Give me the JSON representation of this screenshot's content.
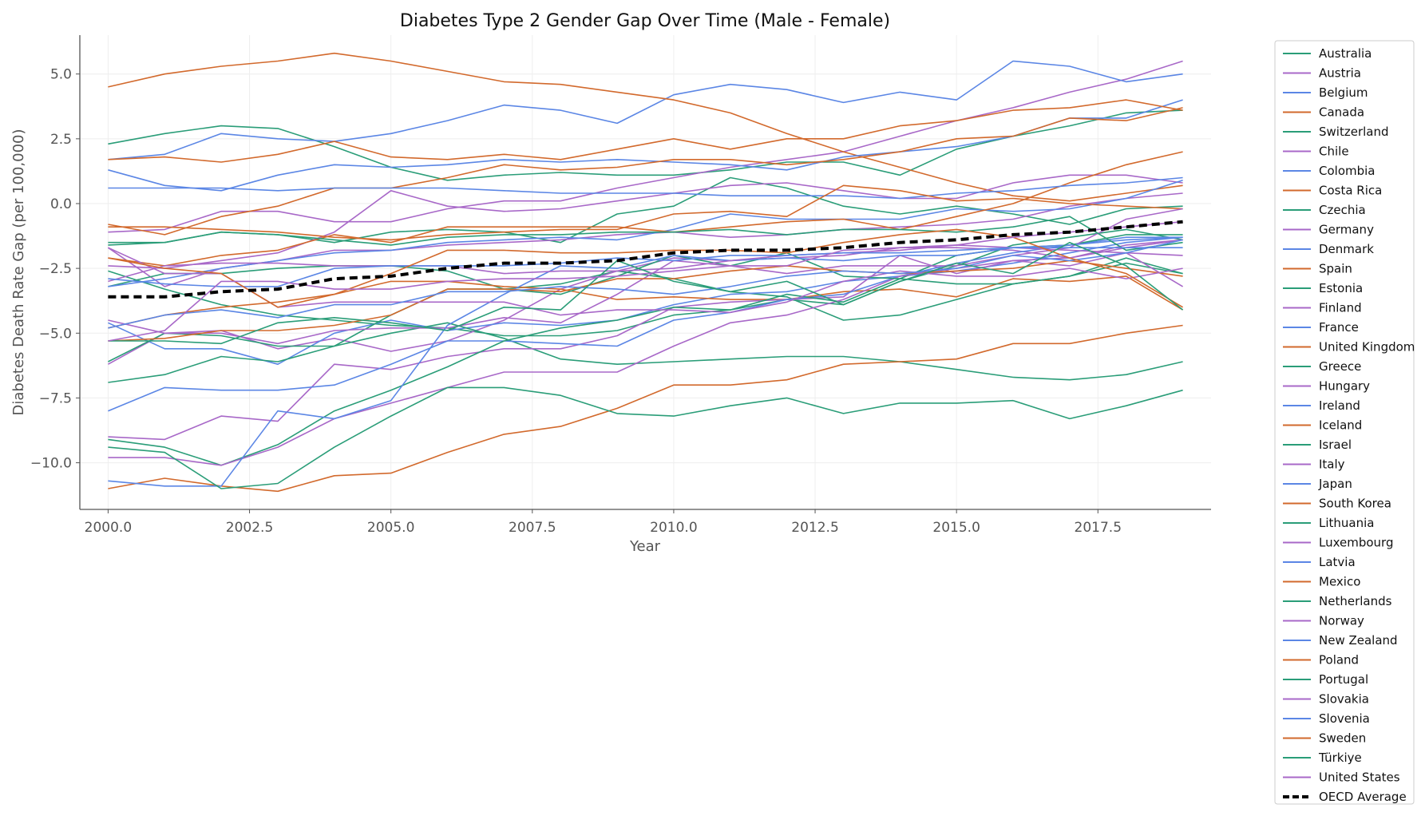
{
  "chart_data": {
    "type": "line",
    "title": "Diabetes Type 2 Gender Gap Over Time (Male - Female)",
    "xlabel": "Year",
    "ylabel": "Diabetes Death Rate Gap (per 100,000)",
    "xlim": [
      1999.5,
      2019.5
    ],
    "ylim": [
      -11.8,
      6.5
    ],
    "xticks": [
      2000.0,
      2002.5,
      2005.0,
      2007.5,
      2010.0,
      2012.5,
      2015.0,
      2017.5
    ],
    "xtick_labels": [
      "2000.0",
      "2002.5",
      "2005.0",
      "2007.5",
      "2010.0",
      "2012.5",
      "2015.0",
      "2017.5"
    ],
    "yticks": [
      5.0,
      2.5,
      0.0,
      -2.5,
      -5.0,
      -7.5,
      -10.0
    ],
    "ytick_labels": [
      "5.0",
      "2.5",
      "0.0",
      "−2.5",
      "−5.0",
      "−7.5",
      "−10.0"
    ],
    "grid": true,
    "legend_position": "outside-right",
    "colors": {
      "green": "#2a9d78",
      "purple": "#a868c8",
      "blue": "#5b86e5",
      "orange": "#d2692c",
      "average": "#000000"
    },
    "x": [
      2000,
      2001,
      2002,
      2003,
      2004,
      2005,
      2006,
      2007,
      2008,
      2009,
      2010,
      2011,
      2012,
      2013,
      2014,
      2015,
      2016,
      2017,
      2018,
      2019
    ],
    "series": [
      {
        "name": "Australia",
        "color_key": "green",
        "values": [
          2.3,
          2.7,
          3.0,
          2.9,
          2.2,
          1.4,
          0.9,
          1.1,
          1.2,
          1.1,
          1.1,
          1.3,
          1.6,
          1.6,
          1.1,
          2.1,
          2.6,
          3.0,
          3.5,
          3.6
        ]
      },
      {
        "name": "Austria",
        "color_key": "purple",
        "values": [
          -1.1,
          -1.0,
          -0.3,
          -0.3,
          -0.7,
          -0.7,
          -0.2,
          0.1,
          0.1,
          0.6,
          1.0,
          1.4,
          1.7,
          2.0,
          2.6,
          3.2,
          3.7,
          4.3,
          4.8,
          5.5
        ]
      },
      {
        "name": "Belgium",
        "color_key": "blue",
        "values": [
          1.7,
          1.9,
          2.7,
          2.5,
          2.4,
          2.7,
          3.2,
          3.8,
          3.6,
          3.1,
          4.2,
          4.6,
          4.4,
          3.9,
          4.3,
          4.0,
          5.5,
          5.3,
          4.7,
          5.0
        ]
      },
      {
        "name": "Canada",
        "color_key": "orange",
        "values": [
          4.5,
          5.0,
          5.3,
          5.5,
          5.8,
          5.5,
          5.1,
          4.7,
          4.6,
          4.3,
          4.0,
          3.5,
          2.7,
          2.0,
          1.4,
          0.8,
          0.3,
          0.1,
          0.4,
          0.7
        ]
      },
      {
        "name": "Switzerland",
        "color_key": "green",
        "values": [
          -1.6,
          -1.5,
          -1.1,
          -1.2,
          -1.5,
          -1.1,
          -1.0,
          -1.1,
          -1.5,
          -0.4,
          -0.1,
          1.0,
          0.6,
          -0.1,
          -0.4,
          -0.1,
          -0.4,
          -0.8,
          -0.2,
          -0.1
        ]
      },
      {
        "name": "Chile",
        "color_key": "purple",
        "values": [
          -1.7,
          -3.2,
          -2.5,
          -2.2,
          -1.8,
          -1.8,
          -1.6,
          -1.5,
          -1.4,
          -1.2,
          -1.1,
          -1.3,
          -1.2,
          -1.0,
          -0.9,
          -0.8,
          -0.6,
          -0.1,
          0.2,
          0.4
        ]
      },
      {
        "name": "Colombia",
        "color_key": "blue",
        "values": [
          1.3,
          0.7,
          0.5,
          1.1,
          1.5,
          1.4,
          1.5,
          1.7,
          1.6,
          1.7,
          1.6,
          1.5,
          1.3,
          1.8,
          2.0,
          2.2,
          2.6,
          3.3,
          3.3,
          4.0
        ]
      },
      {
        "name": "Costa Rica",
        "color_key": "orange",
        "values": [
          -0.8,
          -1.2,
          -0.5,
          -0.1,
          0.6,
          0.6,
          1.0,
          1.5,
          1.3,
          1.4,
          1.7,
          1.7,
          1.5,
          1.7,
          2.0,
          2.5,
          2.6,
          3.3,
          3.2,
          3.7
        ]
      },
      {
        "name": "Czechia",
        "color_key": "green",
        "values": [
          -3.2,
          -2.7,
          -2.7,
          -2.5,
          -2.4,
          -2.4,
          -2.6,
          -3.3,
          -3.1,
          -2.6,
          -2.9,
          -3.4,
          -3.6,
          -4.5,
          -4.3,
          -3.7,
          -3.1,
          -2.8,
          -2.3,
          -2.7
        ]
      },
      {
        "name": "Germany",
        "color_key": "purple",
        "values": [
          -2.4,
          -2.5,
          -2.2,
          -1.9,
          -1.1,
          0.5,
          -0.1,
          -0.3,
          -0.2,
          0.1,
          0.4,
          0.7,
          0.8,
          0.5,
          0.2,
          0.2,
          0.8,
          1.1,
          1.1,
          0.8
        ]
      },
      {
        "name": "Denmark",
        "color_key": "blue",
        "values": [
          -3.2,
          -2.9,
          -2.5,
          -2.2,
          -1.9,
          -1.8,
          -1.5,
          -1.4,
          -1.3,
          -1.4,
          -1.0,
          -0.4,
          -0.6,
          -0.6,
          -0.6,
          -0.2,
          -0.3,
          -0.2,
          0.2,
          0.9
        ]
      },
      {
        "name": "Spain",
        "color_key": "orange",
        "values": [
          -2.1,
          -2.4,
          -2.0,
          -1.8,
          -1.2,
          -1.5,
          -0.9,
          -0.9,
          -0.9,
          -0.9,
          -1.1,
          -0.9,
          -0.7,
          -0.6,
          -1.0,
          -0.5,
          0.0,
          0.8,
          1.5,
          2.0
        ]
      },
      {
        "name": "Estonia",
        "color_key": "green",
        "values": [
          -2.6,
          -3.3,
          -3.9,
          -4.3,
          -4.5,
          -4.7,
          -4.8,
          -5.1,
          -5.1,
          -4.9,
          -4.3,
          -4.1,
          -3.7,
          -3.9,
          -3.0,
          -2.4,
          -1.6,
          -1.3,
          -1.0,
          -1.4
        ]
      },
      {
        "name": "Finland",
        "color_key": "purple",
        "values": [
          -6.2,
          -5.0,
          -4.9,
          -5.6,
          -5.2,
          -5.7,
          -5.3,
          -4.5,
          -3.3,
          -2.6,
          -2.1,
          -2.2,
          -2.1,
          -2.0,
          -1.7,
          -1.7,
          -1.8,
          -2.1,
          -1.6,
          -1.4
        ]
      },
      {
        "name": "France",
        "color_key": "blue",
        "values": [
          -4.6,
          -5.6,
          -5.6,
          -6.2,
          -5.0,
          -4.5,
          -4.9,
          -4.6,
          -4.7,
          -4.5,
          -3.9,
          -3.5,
          -3.4,
          -3.0,
          -2.8,
          -2.6,
          -2.3,
          -1.9,
          -1.5,
          -1.3
        ]
      },
      {
        "name": "United Kingdom",
        "color_key": "orange",
        "values": [
          -4.8,
          -4.3,
          -4.0,
          -3.8,
          -3.5,
          -3.0,
          -3.0,
          -3.2,
          -3.3,
          -3.7,
          -3.6,
          -3.7,
          -3.7,
          -3.4,
          -3.3,
          -3.6,
          -2.9,
          -3.0,
          -2.8,
          -4.1
        ]
      },
      {
        "name": "Greece",
        "color_key": "green",
        "values": [
          -6.1,
          -5.0,
          -5.1,
          -5.5,
          -5.5,
          -5.0,
          -4.6,
          -5.2,
          -6.0,
          -6.2,
          -6.1,
          -6.0,
          -5.9,
          -5.9,
          -6.1,
          -6.4,
          -6.7,
          -6.8,
          -6.6,
          -6.1
        ]
      },
      {
        "name": "Hungary",
        "color_key": "purple",
        "values": [
          -9.0,
          -9.1,
          -8.2,
          -8.4,
          -6.2,
          -6.4,
          -5.9,
          -5.6,
          -5.6,
          -5.1,
          -4.0,
          -3.8,
          -3.7,
          -3.6,
          -2.0,
          -2.7,
          -2.2,
          -2.4,
          -1.9,
          -2.0
        ]
      },
      {
        "name": "Ireland",
        "color_key": "blue",
        "values": [
          -8.0,
          -7.1,
          -7.2,
          -7.2,
          -7.0,
          -6.2,
          -5.3,
          -5.3,
          -5.4,
          -5.5,
          -4.5,
          -4.2,
          -3.7,
          -3.5,
          -2.8,
          -2.3,
          -1.9,
          -1.6,
          -1.3,
          -1.3
        ]
      },
      {
        "name": "Iceland",
        "color_key": "orange",
        "values": [
          -11.0,
          -10.6,
          -10.9,
          -11.1,
          -10.5,
          -10.4,
          -9.6,
          -8.9,
          -8.6,
          -7.9,
          -7.0,
          -7.0,
          -6.8,
          -6.2,
          -6.1,
          -6.0,
          -5.4,
          -5.4,
          -5.0,
          -4.7
        ]
      },
      {
        "name": "Israel",
        "color_key": "green",
        "values": [
          -9.1,
          -9.4,
          -10.1,
          -9.3,
          -8.0,
          -7.2,
          -6.3,
          -5.3,
          -4.8,
          -4.5,
          -4.0,
          -4.1,
          -3.5,
          -3.8,
          -2.9,
          -2.0,
          -1.7,
          -1.6,
          -1.2,
          -1.2
        ]
      },
      {
        "name": "Italy",
        "color_key": "purple",
        "values": [
          -9.8,
          -9.8,
          -10.1,
          -9.4,
          -8.3,
          -7.7,
          -7.1,
          -6.5,
          -6.5,
          -6.5,
          -5.5,
          -4.6,
          -4.3,
          -3.7,
          -2.8,
          -2.5,
          -2.2,
          -2.1,
          -1.7,
          -1.4
        ]
      },
      {
        "name": "Japan",
        "color_key": "blue",
        "values": [
          0.6,
          0.6,
          0.6,
          0.5,
          0.6,
          0.6,
          0.6,
          0.5,
          0.4,
          0.4,
          0.4,
          0.3,
          0.3,
          0.3,
          0.2,
          0.4,
          0.5,
          0.7,
          0.8,
          1.0
        ]
      },
      {
        "name": "South Korea",
        "color_key": "orange",
        "values": [
          -0.9,
          -0.9,
          -1.0,
          -1.1,
          -1.3,
          -1.4,
          -1.2,
          -1.1,
          -1.0,
          -1.0,
          -0.4,
          -0.3,
          -0.5,
          0.7,
          0.5,
          0.1,
          0.2,
          0.0,
          -0.1,
          -0.2
        ]
      },
      {
        "name": "Lithuania",
        "color_key": "green",
        "values": [
          -6.9,
          -6.6,
          -5.9,
          -6.1,
          -5.5,
          -4.3,
          -3.3,
          -3.3,
          -3.5,
          -2.8,
          -2.0,
          -2.4,
          -1.9,
          -2.8,
          -2.9,
          -3.1,
          -3.1,
          -2.8,
          -2.1,
          -2.7
        ]
      },
      {
        "name": "Luxembourg",
        "color_key": "purple",
        "values": [
          -4.5,
          -5.0,
          -5.0,
          -5.4,
          -4.9,
          -4.8,
          -4.8,
          -4.4,
          -4.6,
          -3.5,
          -2.2,
          -2.4,
          -2.7,
          -2.4,
          -2.4,
          -2.4,
          -2.0,
          -1.7,
          -0.6,
          -0.2
        ]
      },
      {
        "name": "Latvia",
        "color_key": "blue",
        "values": [
          -10.7,
          -10.9,
          -10.9,
          -8.0,
          -8.3,
          -7.6,
          -4.7,
          -3.5,
          -2.4,
          -2.5,
          -2.0,
          -2.2,
          -2.1,
          -2.2,
          -2.0,
          -2.0,
          -1.7,
          -1.6,
          -1.4,
          -1.3
        ]
      },
      {
        "name": "Mexico",
        "color_key": "orange",
        "values": [
          1.7,
          1.8,
          1.6,
          1.9,
          2.4,
          1.8,
          1.7,
          1.9,
          1.7,
          2.1,
          2.5,
          2.1,
          2.5,
          2.5,
          3.0,
          3.2,
          3.6,
          3.7,
          4.0,
          3.6
        ]
      },
      {
        "name": "Netherlands",
        "color_key": "green",
        "values": [
          -1.5,
          -1.5,
          -1.1,
          -1.2,
          -1.4,
          -1.6,
          -1.3,
          -1.2,
          -1.2,
          -1.1,
          -1.1,
          -1.0,
          -1.2,
          -1.0,
          -1.0,
          -1.1,
          -0.9,
          -0.5,
          -1.8,
          -1.5
        ]
      },
      {
        "name": "Norway",
        "color_key": "purple",
        "values": [
          -3.0,
          -2.4,
          -2.3,
          -2.3,
          -2.4,
          -2.4,
          -2.4,
          -2.7,
          -2.6,
          -2.6,
          -2.5,
          -2.2,
          -2.0,
          -1.9,
          -1.8,
          -1.6,
          -1.7,
          -1.8,
          -1.9,
          -3.2
        ]
      },
      {
        "name": "New Zealand",
        "color_key": "blue",
        "values": [
          -2.9,
          -3.1,
          -3.2,
          -3.2,
          -2.5,
          -2.4,
          -2.4,
          -2.4,
          -2.3,
          -2.1,
          -2.2,
          -2.0,
          -2.0,
          -1.9,
          -1.9,
          -1.8,
          -1.7,
          -1.7,
          -1.7,
          -1.7
        ]
      },
      {
        "name": "Poland",
        "color_key": "orange",
        "values": [
          -5.3,
          -5.2,
          -4.9,
          -4.9,
          -4.7,
          -4.3,
          -3.3,
          -3.3,
          -3.4,
          -2.9,
          -2.9,
          -2.6,
          -2.4,
          -2.6,
          -2.7,
          -2.6,
          -2.5,
          -2.2,
          -2.5,
          -2.8
        ]
      },
      {
        "name": "Portugal",
        "color_key": "green",
        "values": [
          -9.4,
          -9.6,
          -11.0,
          -10.8,
          -9.4,
          -8.2,
          -7.1,
          -7.1,
          -7.4,
          -8.1,
          -8.2,
          -7.8,
          -7.5,
          -8.1,
          -7.7,
          -7.7,
          -7.6,
          -8.3,
          -7.8,
          -7.2
        ]
      },
      {
        "name": "Slovakia",
        "color_key": "purple",
        "values": [
          -1.7,
          -2.7,
          -2.7,
          -4.0,
          -3.8,
          -3.8,
          -3.8,
          -3.8,
          -4.3,
          -4.1,
          -4.1,
          -4.2,
          -3.8,
          -3.0,
          -2.6,
          -2.8,
          -2.8,
          -2.5,
          -2.9,
          -2.5
        ]
      },
      {
        "name": "Slovenia",
        "color_key": "blue",
        "values": [
          -4.8,
          -4.3,
          -4.1,
          -4.4,
          -3.9,
          -3.9,
          -3.4,
          -3.4,
          -3.2,
          -3.3,
          -3.5,
          -3.2,
          -2.8,
          -2.6,
          -2.7,
          -2.5,
          -2.0,
          -2.2,
          -1.9,
          -1.4
        ]
      },
      {
        "name": "Sweden",
        "color_key": "orange",
        "values": [
          -2.1,
          -2.5,
          -2.7,
          -4.0,
          -3.5,
          -2.7,
          -1.8,
          -1.8,
          -1.9,
          -1.9,
          -1.8,
          -1.8,
          -1.9,
          -1.5,
          -1.2,
          -1.0,
          -1.3,
          -2.1,
          -2.7,
          -4.0
        ]
      },
      {
        "name": "Türkiye",
        "color_key": "green",
        "values": [
          -5.3,
          -5.3,
          -5.4,
          -4.6,
          -4.4,
          -4.6,
          -4.9,
          -4.0,
          -4.1,
          -2.2,
          -3.0,
          -3.4,
          -3.0,
          -3.9,
          -3.0,
          -2.3,
          -2.7,
          -1.5,
          -2.4,
          -4.1
        ]
      },
      {
        "name": "United States",
        "color_key": "purple",
        "values": [
          -5.3,
          -4.9,
          -3.0,
          -3.0,
          -3.3,
          -3.3,
          -3.0,
          -2.9,
          -2.9,
          -2.8,
          -2.6,
          -2.4,
          -2.4,
          -1.8,
          -1.7,
          -1.6,
          -1.3,
          -1.1,
          -0.9,
          -0.7
        ]
      },
      {
        "name": "OECD Average",
        "color_key": "average",
        "dashed": true,
        "values": [
          -3.6,
          -3.6,
          -3.4,
          -3.3,
          -2.9,
          -2.8,
          -2.5,
          -2.3,
          -2.3,
          -2.2,
          -1.9,
          -1.8,
          -1.8,
          -1.7,
          -1.5,
          -1.4,
          -1.2,
          -1.1,
          -0.9,
          -0.7
        ]
      }
    ]
  }
}
